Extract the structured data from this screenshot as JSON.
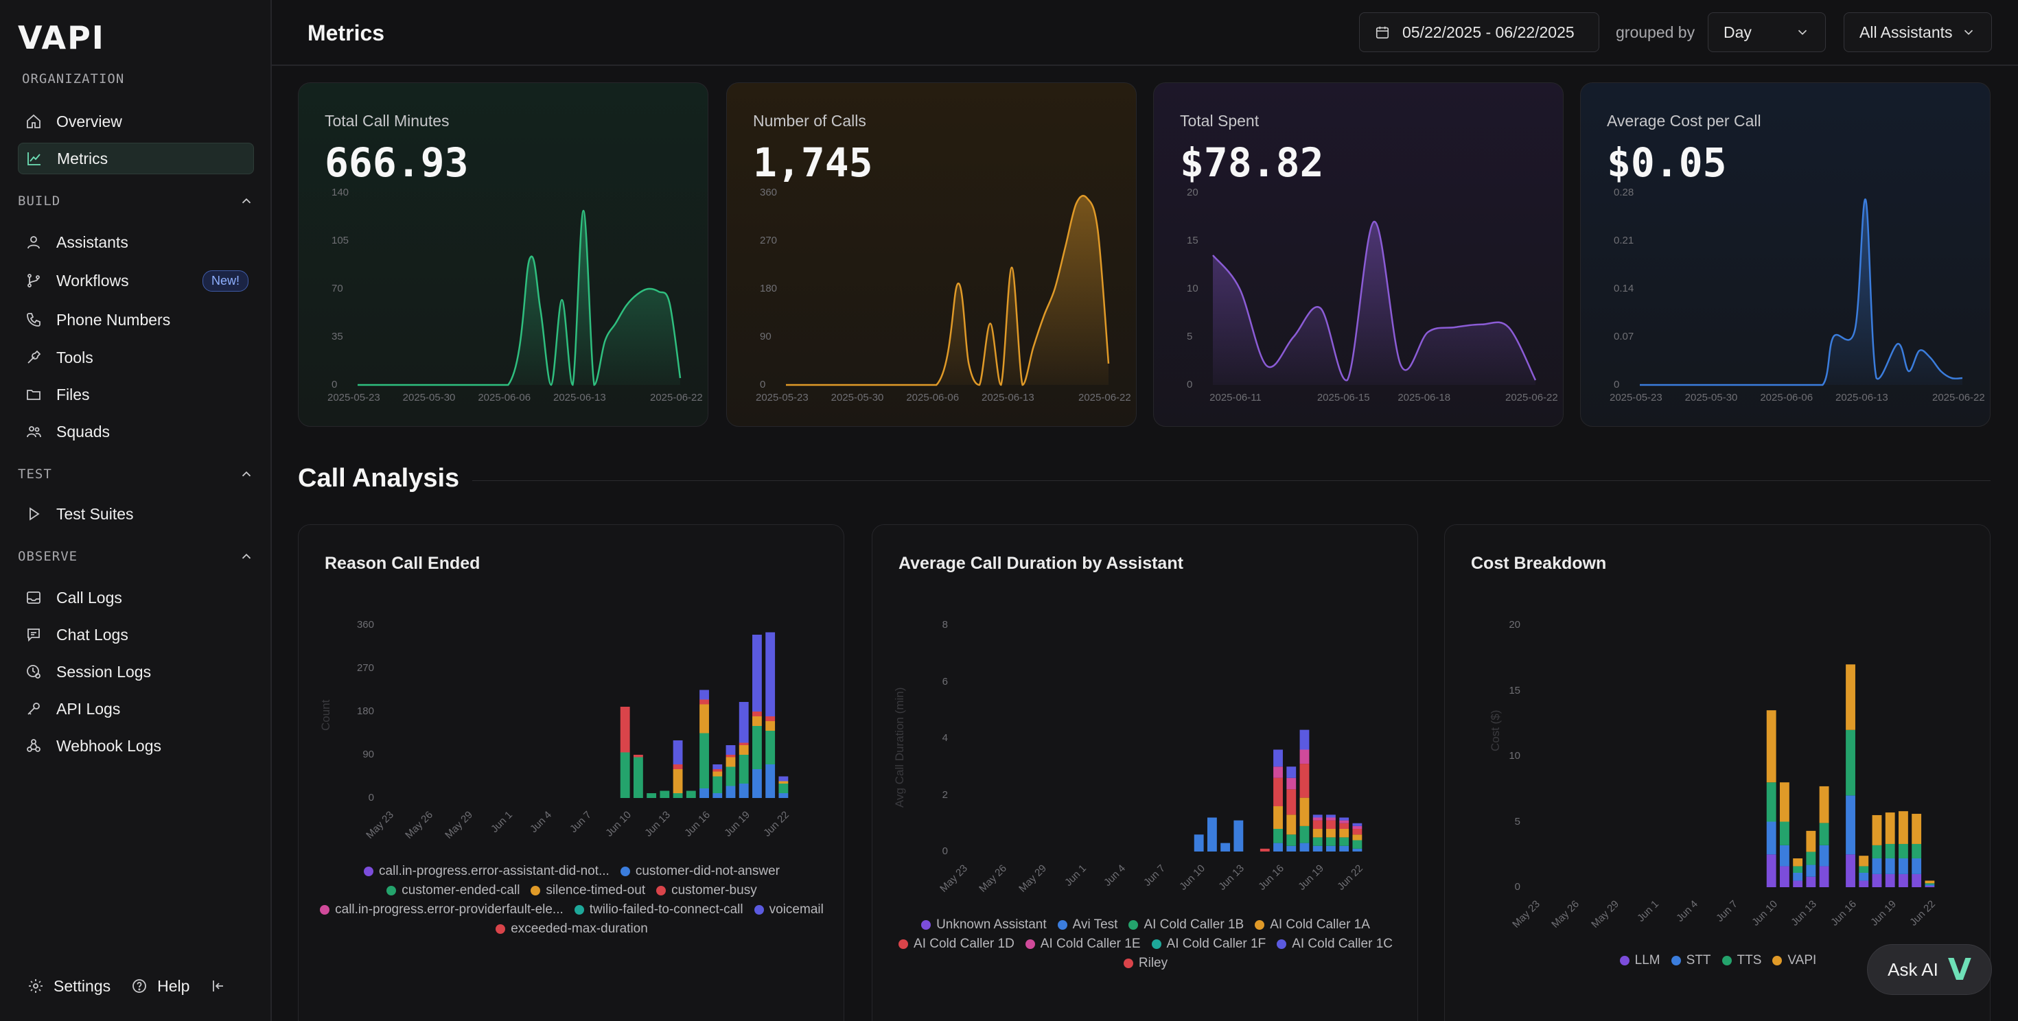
{
  "sidebar": {
    "logo": "VAPI",
    "org_label": "ORGANIZATION",
    "org_items": [
      {
        "label": "Overview",
        "icon": "home-icon"
      },
      {
        "label": "Metrics",
        "icon": "chart-line-icon",
        "active": true
      }
    ],
    "build_label": "BUILD",
    "build_items": [
      {
        "label": "Assistants",
        "icon": "user-icon"
      },
      {
        "label": "Workflows",
        "icon": "git-branch-icon",
        "badge": "New!"
      },
      {
        "label": "Phone Numbers",
        "icon": "phone-icon"
      },
      {
        "label": "Tools",
        "icon": "wrench-icon"
      },
      {
        "label": "Files",
        "icon": "folder-icon"
      },
      {
        "label": "Squads",
        "icon": "users-icon"
      }
    ],
    "test_label": "TEST",
    "test_items": [
      {
        "label": "Test Suites",
        "icon": "play-icon"
      }
    ],
    "observe_label": "OBSERVE",
    "observe_items": [
      {
        "label": "Call Logs",
        "icon": "inbox-icon"
      },
      {
        "label": "Chat Logs",
        "icon": "chat-icon"
      },
      {
        "label": "Session Logs",
        "icon": "session-icon"
      },
      {
        "label": "API Logs",
        "icon": "key-icon"
      },
      {
        "label": "Webhook Logs",
        "icon": "webhook-icon"
      }
    ],
    "footer": {
      "settings": "Settings",
      "help": "Help"
    }
  },
  "header": {
    "title": "Metrics",
    "date_range": "05/22/2025 - 06/22/2025",
    "grouped_by_label": "grouped by",
    "group_value": "Day",
    "assistant_filter": "All Assistants"
  },
  "metrics": [
    {
      "label": "Total Call Minutes",
      "value": "666.93",
      "color": "#2fbf7f"
    },
    {
      "label": "Number of Calls",
      "value": "1,745",
      "color": "#e09a28"
    },
    {
      "label": "Total Spent",
      "value": "$78.82",
      "color": "#8b5cd6"
    },
    {
      "label": "Average Cost per Call",
      "value": "$0.05",
      "color": "#3b7ddd"
    }
  ],
  "spark_ticks": {
    "minutes_y": [
      "140",
      "105",
      "70",
      "35",
      "0"
    ],
    "calls_y": [
      "360",
      "270",
      "180",
      "90",
      "0"
    ],
    "spent_y": [
      "20",
      "15",
      "10",
      "5",
      "0"
    ],
    "avg_y": [
      "0.28",
      "0.21",
      "0.14",
      "0.07",
      "0"
    ],
    "x_a": [
      "2025-05-23",
      "2025-05-30",
      "2025-06-06",
      "2025-06-13",
      "2025-06-22"
    ],
    "x_spent": [
      "2025-06-11",
      "2025-06-15",
      "2025-06-18",
      "2025-06-22"
    ]
  },
  "analysis": {
    "title": "Call Analysis",
    "reason_title": "Reason Call Ended",
    "reason_ylabel": "Count",
    "duration_title": "Average Call Duration by Assistant",
    "duration_ylabel": "Avg Call Duration (min)",
    "cost_title": "Cost Breakdown",
    "cost_ylabel": "Cost ($)",
    "x_dates": [
      "May 23",
      "May 26",
      "May 29",
      "Jun 1",
      "Jun 4",
      "Jun 7",
      "Jun 10",
      "Jun 13",
      "Jun 16",
      "Jun 19",
      "Jun 22"
    ],
    "reason_y": [
      "360",
      "270",
      "180",
      "90",
      "0"
    ],
    "duration_y": [
      "8",
      "6",
      "4",
      "2",
      "0"
    ],
    "cost_y": [
      "20",
      "15",
      "10",
      "5",
      "0"
    ],
    "reason_legend": [
      {
        "label": "call.in-progress.error-assistant-did-not...",
        "color": "#7c4ddb"
      },
      {
        "label": "customer-did-not-answer",
        "color": "#3b7ddd"
      },
      {
        "label": "customer-ended-call",
        "color": "#24a36c"
      },
      {
        "label": "silence-timed-out",
        "color": "#e09a28"
      },
      {
        "label": "customer-busy",
        "color": "#d9444a"
      },
      {
        "label": "call.in-progress.error-providerfault-ele...",
        "color": "#d04a9a"
      },
      {
        "label": "twilio-failed-to-connect-call",
        "color": "#1ea89a"
      },
      {
        "label": "voicemail",
        "color": "#5b5ae0"
      },
      {
        "label": "exceeded-max-duration",
        "color": "#d9444a"
      }
    ],
    "duration_legend": [
      {
        "label": "Unknown Assistant",
        "color": "#7c4ddb"
      },
      {
        "label": "Avi Test",
        "color": "#3b7ddd"
      },
      {
        "label": "AI Cold Caller 1B",
        "color": "#24a36c"
      },
      {
        "label": "AI Cold Caller 1A",
        "color": "#e09a28"
      },
      {
        "label": "AI Cold Caller 1D",
        "color": "#d9444a"
      },
      {
        "label": "AI Cold Caller 1E",
        "color": "#d04a9a"
      },
      {
        "label": "AI Cold Caller 1F",
        "color": "#1ea89a"
      },
      {
        "label": "AI Cold Caller 1C",
        "color": "#5b5ae0"
      },
      {
        "label": "Riley",
        "color": "#d9444a"
      }
    ],
    "cost_legend": [
      {
        "label": "LLM",
        "color": "#7c4ddb"
      },
      {
        "label": "STT",
        "color": "#3b7ddd"
      },
      {
        "label": "TTS",
        "color": "#24a36c"
      },
      {
        "label": "VAPI",
        "color": "#e09a28"
      }
    ]
  },
  "chart_data": [
    {
      "type": "area",
      "title": "Total Call Minutes",
      "x": [
        "2025-05-23",
        "2025-05-30",
        "2025-06-06",
        "2025-06-08",
        "2025-06-09",
        "2025-06-10",
        "2025-06-11",
        "2025-06-12",
        "2025-06-13",
        "2025-06-14",
        "2025-06-15",
        "2025-06-16",
        "2025-06-17",
        "2025-06-18",
        "2025-06-19",
        "2025-06-20",
        "2025-06-21",
        "2025-06-22"
      ],
      "values": [
        0,
        0,
        0,
        92,
        55,
        0,
        62,
        0,
        127,
        0,
        32,
        45,
        58,
        66,
        70,
        68,
        60,
        5
      ],
      "ylim": [
        0,
        140
      ]
    },
    {
      "type": "area",
      "title": "Number of Calls",
      "x": [
        "2025-05-23",
        "2025-05-30",
        "2025-06-06",
        "2025-06-08",
        "2025-06-09",
        "2025-06-10",
        "2025-06-11",
        "2025-06-12",
        "2025-06-13",
        "2025-06-14",
        "2025-06-15",
        "2025-06-16",
        "2025-06-17",
        "2025-06-18",
        "2025-06-19",
        "2025-06-20",
        "2025-06-21",
        "2025-06-22"
      ],
      "values": [
        0,
        0,
        0,
        190,
        40,
        0,
        115,
        0,
        220,
        0,
        70,
        130,
        180,
        260,
        340,
        350,
        290,
        40
      ],
      "ylim": [
        0,
        360
      ]
    },
    {
      "type": "area",
      "title": "Total Spent",
      "x": [
        "2025-06-10",
        "2025-06-11",
        "2025-06-12",
        "2025-06-13",
        "2025-06-14",
        "2025-06-15",
        "2025-06-16",
        "2025-06-17",
        "2025-06-18",
        "2025-06-19",
        "2025-06-20",
        "2025-06-21",
        "2025-06-22"
      ],
      "values": [
        13.5,
        10,
        2,
        5,
        8,
        0.5,
        17,
        2,
        5.5,
        6,
        6.3,
        6,
        0.5
      ],
      "ylim": [
        0,
        20
      ]
    },
    {
      "type": "area",
      "title": "Average Cost per Call",
      "x": [
        "2025-05-23",
        "2025-05-30",
        "2025-06-06",
        "2025-06-09",
        "2025-06-10",
        "2025-06-12",
        "2025-06-13",
        "2025-06-14",
        "2025-06-16",
        "2025-06-17",
        "2025-06-18",
        "2025-06-19",
        "2025-06-20",
        "2025-06-21",
        "2025-06-22"
      ],
      "values": [
        0,
        0,
        0,
        0,
        0.07,
        0.08,
        0.27,
        0.01,
        0.06,
        0.02,
        0.05,
        0.04,
        0.02,
        0.01,
        0.01
      ],
      "ylim": [
        0,
        0.28
      ]
    },
    {
      "type": "bar",
      "stacked": true,
      "title": "Reason Call Ended",
      "ylabel": "Count",
      "ylim": [
        0,
        360
      ],
      "categories": [
        "Jun 10",
        "Jun 11",
        "Jun 12",
        "Jun 13",
        "Jun 14",
        "Jun 15",
        "Jun 16",
        "Jun 17",
        "Jun 18",
        "Jun 19",
        "Jun 20",
        "Jun 21",
        "Jun 22"
      ],
      "series": [
        {
          "name": "customer-did-not-answer",
          "values": [
            0,
            0,
            0,
            0,
            0,
            0,
            20,
            10,
            25,
            30,
            60,
            70,
            10
          ]
        },
        {
          "name": "customer-ended-call",
          "values": [
            95,
            85,
            10,
            15,
            10,
            15,
            115,
            35,
            40,
            60,
            90,
            70,
            20
          ]
        },
        {
          "name": "silence-timed-out",
          "values": [
            0,
            0,
            0,
            0,
            50,
            0,
            60,
            10,
            20,
            20,
            20,
            20,
            5
          ]
        },
        {
          "name": "customer-busy",
          "values": [
            95,
            5,
            0,
            0,
            10,
            0,
            10,
            5,
            5,
            5,
            10,
            10,
            0
          ]
        },
        {
          "name": "voicemail",
          "values": [
            0,
            0,
            0,
            0,
            50,
            0,
            20,
            10,
            20,
            85,
            160,
            175,
            10
          ]
        }
      ]
    },
    {
      "type": "bar",
      "stacked": true,
      "title": "Average Call Duration by Assistant",
      "ylabel": "Avg Call Duration (min)",
      "ylim": [
        0,
        8
      ],
      "categories": [
        "Jun 10",
        "Jun 11",
        "Jun 12",
        "Jun 13",
        "Jun 15",
        "Jun 16",
        "Jun 17",
        "Jun 18",
        "Jun 19",
        "Jun 20",
        "Jun 21",
        "Jun 22"
      ],
      "series": [
        {
          "name": "Avi Test",
          "values": [
            0.6,
            1.2,
            0.3,
            1.1,
            0,
            0.3,
            0.2,
            0.3,
            0.2,
            0.2,
            0.2,
            0.1
          ]
        },
        {
          "name": "AI Cold Caller 1B",
          "values": [
            0,
            0,
            0,
            0,
            0,
            0.5,
            0.4,
            0.6,
            0.3,
            0.3,
            0.3,
            0.3
          ]
        },
        {
          "name": "AI Cold Caller 1A",
          "values": [
            0,
            0,
            0,
            0,
            0,
            0.8,
            0.7,
            1.0,
            0.3,
            0.3,
            0.3,
            0.2
          ]
        },
        {
          "name": "AI Cold Caller 1D",
          "values": [
            0,
            0,
            0,
            0,
            0.1,
            1.0,
            0.9,
            1.2,
            0.3,
            0.3,
            0.2,
            0.2
          ]
        },
        {
          "name": "AI Cold Caller 1E",
          "values": [
            0,
            0,
            0,
            0,
            0,
            0.4,
            0.4,
            0.5,
            0.1,
            0.1,
            0.1,
            0.1
          ]
        },
        {
          "name": "AI Cold Caller 1C",
          "values": [
            0,
            0,
            0,
            0,
            0,
            0.6,
            0.4,
            0.7,
            0.1,
            0.1,
            0.1,
            0.1
          ]
        }
      ]
    },
    {
      "type": "bar",
      "stacked": true,
      "title": "Cost Breakdown",
      "ylabel": "Cost ($)",
      "ylim": [
        0,
        20
      ],
      "categories": [
        "Jun 10",
        "Jun 11",
        "Jun 12",
        "Jun 13",
        "Jun 14",
        "Jun 16",
        "Jun 17",
        "Jun 18",
        "Jun 19",
        "Jun 20",
        "Jun 21",
        "Jun 22"
      ],
      "series": [
        {
          "name": "LLM",
          "values": [
            2.5,
            1.6,
            0.5,
            0.8,
            1.6,
            2.5,
            0.5,
            1.0,
            1.0,
            1.0,
            1.0,
            0.1
          ]
        },
        {
          "name": "STT",
          "values": [
            2.5,
            1.6,
            0.6,
            0.9,
            1.6,
            4.5,
            0.6,
            1.2,
            1.2,
            1.2,
            1.2,
            0.1
          ]
        },
        {
          "name": "TTS",
          "values": [
            3.0,
            1.8,
            0.5,
            1.0,
            1.7,
            5.0,
            0.5,
            1.0,
            1.1,
            1.1,
            1.1,
            0.1
          ]
        },
        {
          "name": "VAPI",
          "values": [
            5.5,
            3.0,
            0.6,
            1.6,
            2.8,
            5.0,
            0.8,
            2.3,
            2.4,
            2.5,
            2.3,
            0.2
          ]
        }
      ]
    }
  ]
}
